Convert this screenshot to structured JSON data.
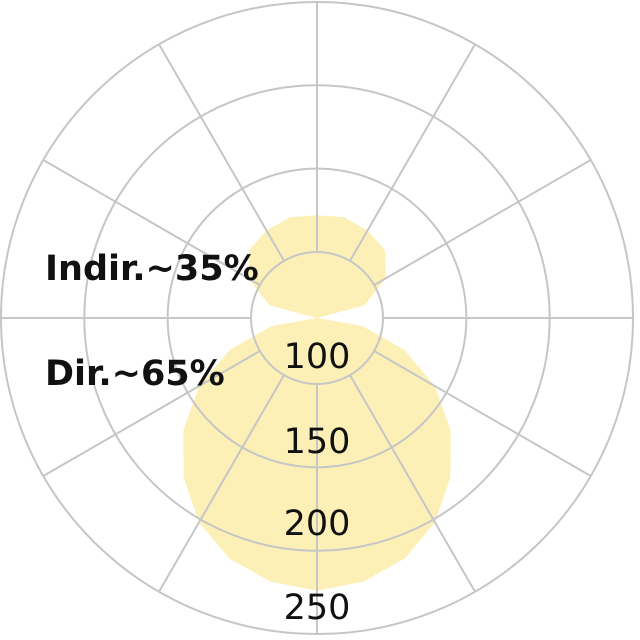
{
  "chart_data": {
    "type": "polar",
    "title": "",
    "radial_ticks": [
      "100",
      "150",
      "200",
      "250"
    ],
    "radial_values": [
      100,
      150,
      200,
      250
    ],
    "angular_step_deg": 30,
    "grid": true,
    "fill_color": "#fdf0b6",
    "grid_color": "#c6c6c6",
    "series": [
      {
        "direction": "down",
        "angles_deg": [
          0,
          10,
          20,
          30,
          40,
          50,
          60,
          70,
          80,
          90
        ],
        "values": [
          224,
          221,
          214,
          202,
          185,
          165,
          142,
          116,
          88,
          60
        ]
      },
      {
        "direction": "up",
        "angles_deg": [
          0,
          15,
          30,
          45,
          60,
          75,
          90
        ],
        "values": [
          122,
          123,
          121,
          118,
          108,
          90,
          60
        ]
      }
    ],
    "annotations": [
      "Indir.~35%",
      "Dir.~65%"
    ]
  }
}
